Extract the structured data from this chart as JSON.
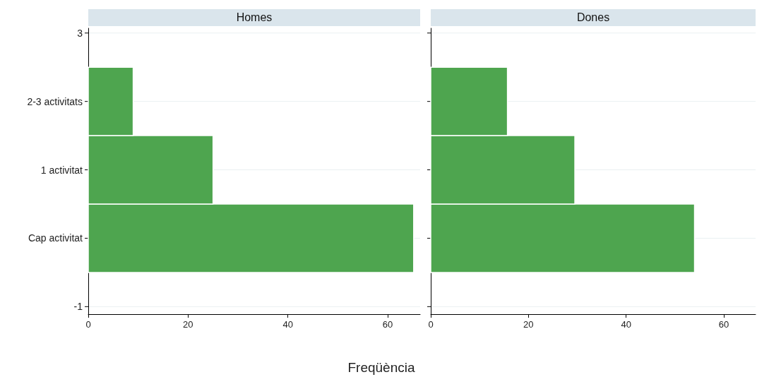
{
  "chart_data": [
    {
      "type": "histogram",
      "orientation": "horizontal",
      "title": "Homes",
      "xlabel": "Freqüència",
      "bins": [
        -0.5,
        0.5,
        1.5,
        2.5
      ],
      "values": [
        65.2,
        25,
        9
      ],
      "color": "#4ea54f",
      "xlim": [
        0,
        66.5
      ],
      "xticks": [
        0,
        20,
        40,
        60
      ],
      "ylim": [
        -1.11,
        3.07
      ],
      "yticks": [
        -1,
        {
          "value": 0,
          "label": "Cap activitat"
        },
        {
          "value": 1,
          "label": "1 activitat"
        },
        {
          "value": 2,
          "label": "2-3 activitats"
        },
        3
      ],
      "grid": "y"
    },
    {
      "type": "histogram",
      "orientation": "horizontal",
      "title": "Dones",
      "bins": [
        -0.5,
        0.5,
        1.5,
        2.5
      ],
      "values": [
        54,
        29.5,
        15.7
      ],
      "color": "#4ea54f",
      "xlim": [
        0,
        66.5
      ],
      "xticks": [
        0,
        20,
        40,
        60
      ],
      "ylim": [
        -1.11,
        3.07
      ],
      "yticks": [
        {
          "value": -1,
          "label": null
        },
        {
          "value": 0,
          "label": null
        },
        {
          "value": 1,
          "label": null
        },
        {
          "value": 2,
          "label": null
        },
        {
          "value": 3,
          "label": null
        }
      ],
      "grid": "y",
      "tick_labels": "x"
    }
  ]
}
